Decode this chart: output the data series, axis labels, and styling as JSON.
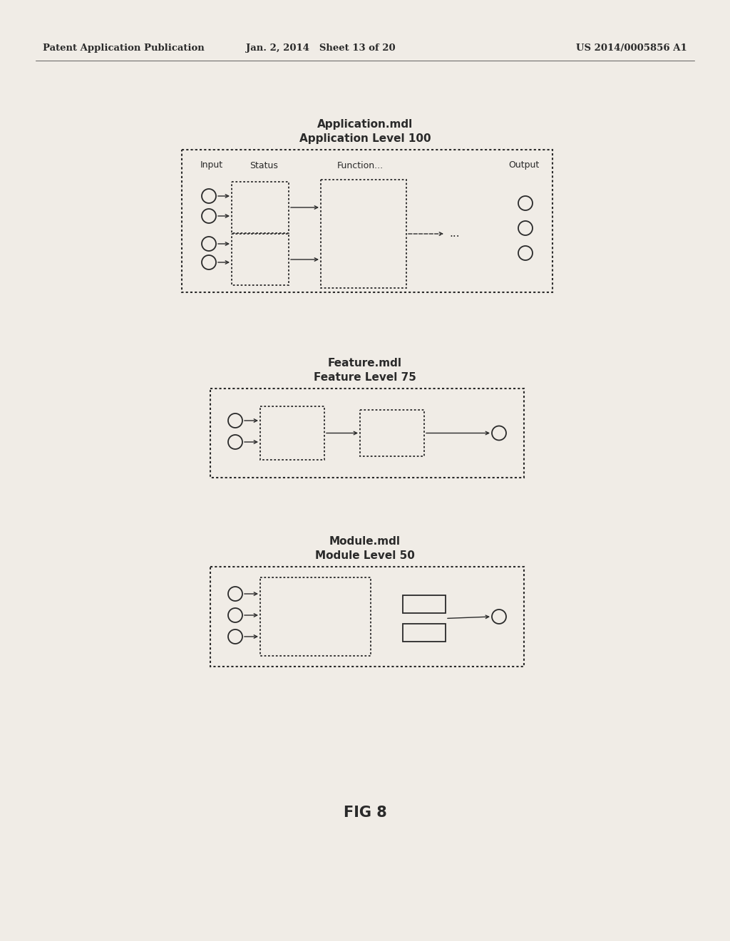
{
  "bg_color": "#e8e4df",
  "page_bg": "#f0ece6",
  "line_color": "#2a2a2a",
  "header_left": "Patent Application Publication",
  "header_mid": "Jan. 2, 2014   Sheet 13 of 20",
  "header_right": "US 2014/0005856 A1",
  "fig_label": "FIG 8",
  "diag1_title1": "Application.mdl",
  "diag1_title2": "Application Level 100",
  "diag2_title1": "Feature.mdl",
  "diag2_title2": "Feature Level 75",
  "diag3_title1": "Module.mdl",
  "diag3_title2": "Module Level 50"
}
